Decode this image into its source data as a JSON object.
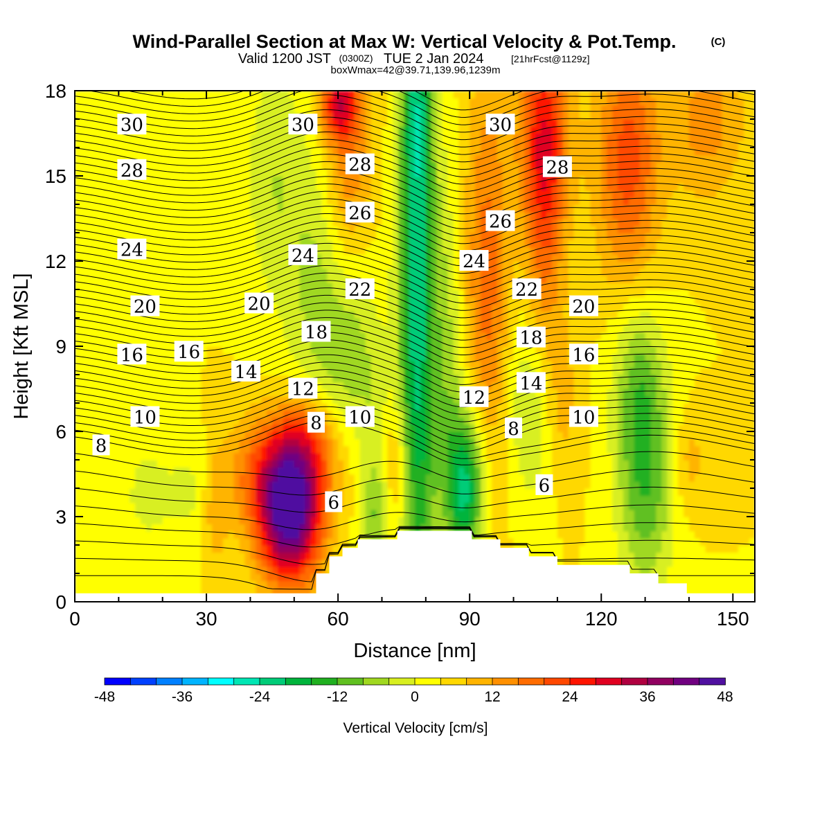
{
  "title": {
    "main": "Wind-Parallel Section at Max W: Vertical Velocity & Pot.Temp.",
    "main_suffix": "(C)",
    "line2_a": "Valid 1200 JST",
    "line2_b": "(0300Z)",
    "line2_c": "TUE 2 Jan 2024",
    "line2_d": "[21hrFcst@1129z]",
    "line3": "boxWmax=42@39.71,139.96,1239m"
  },
  "chart_data": {
    "type": "heatmap",
    "xlabel": "Distance [nm]",
    "ylabel": "Height [Kft MSL]",
    "xlim": [
      0,
      155
    ],
    "ylim": [
      0,
      18
    ],
    "x_ticks": [
      0,
      30,
      60,
      90,
      120,
      150
    ],
    "y_ticks": [
      0,
      3,
      6,
      9,
      12,
      15,
      18
    ],
    "colorbar": {
      "label": "Vertical Velocity [cm/s]",
      "tick_labels": [
        "-48",
        "-36",
        "-24",
        "-12",
        "0",
        "12",
        "24",
        "36",
        "48"
      ],
      "tick_values": [
        -48,
        -36,
        -24,
        -12,
        0,
        12,
        24,
        36,
        48
      ],
      "colors": [
        "#0000ff",
        "#0040ff",
        "#0080ff",
        "#00b4ff",
        "#00ffff",
        "#00e6b4",
        "#00cc78",
        "#00b43c",
        "#20b020",
        "#60c020",
        "#a0d820",
        "#d8ef20",
        "#ffff00",
        "#ffd800",
        "#ffb400",
        "#ff9000",
        "#ff6c00",
        "#ff4800",
        "#ff1400",
        "#e00020",
        "#b00040",
        "#900060",
        "#700080",
        "#5010a0"
      ]
    },
    "terrain_profile": {
      "x": [
        0,
        55,
        55,
        58,
        58,
        61,
        61,
        64.5,
        64.5,
        73.5,
        73.5,
        77,
        77,
        90.5,
        90.5,
        97,
        97,
        103.5,
        103.5,
        110,
        110,
        126.5,
        126.5,
        133,
        133,
        139.5,
        139.5,
        155
      ],
      "y": [
        0.3,
        0.3,
        1.0,
        1.0,
        1.6,
        1.6,
        1.9,
        1.9,
        2.2,
        2.2,
        2.5,
        2.5,
        2.5,
        2.5,
        2.2,
        2.2,
        1.9,
        1.9,
        1.6,
        1.6,
        1.3,
        1.3,
        1.0,
        1.0,
        0.65,
        0.65,
        0.3,
        0.3
      ]
    },
    "vertical_velocity_features": [
      {
        "x": 49,
        "y": 2.9,
        "sx": 5,
        "sy": 1.6,
        "value": 40
      },
      {
        "x": 47,
        "y": 4.6,
        "sx": 8,
        "sy": 1.4,
        "value": 18
      },
      {
        "x": 53,
        "y": 5.8,
        "sx": 5,
        "sy": 1.2,
        "value": 12
      },
      {
        "x": 78,
        "y": 11,
        "sx": 3,
        "sy": 9,
        "value": -27
      },
      {
        "x": 78,
        "y": 17,
        "sx": 2,
        "sy": 1.5,
        "value": -8
      },
      {
        "x": 89,
        "y": 3.5,
        "sx": 3,
        "sy": 1.4,
        "value": -20
      },
      {
        "x": 89,
        "y": 5.5,
        "sx": 3.5,
        "sy": 1.6,
        "value": -12
      },
      {
        "x": 85,
        "y": 9,
        "sx": 2.5,
        "sy": 4,
        "value": -8
      },
      {
        "x": 57,
        "y": 11,
        "sx": 6,
        "sy": 4,
        "value": -11
      },
      {
        "x": 45,
        "y": 15,
        "sx": 4.5,
        "sy": 3,
        "value": -7
      },
      {
        "x": 64,
        "y": 9,
        "sx": 4,
        "sy": 2.5,
        "value": -7
      },
      {
        "x": 69,
        "y": 3,
        "sx": 2.5,
        "sy": 1.3,
        "value": -12
      },
      {
        "x": 69,
        "y": 6,
        "sx": 2.5,
        "sy": 2,
        "value": -5
      },
      {
        "x": 104,
        "y": 7,
        "sx": 4,
        "sy": 2.5,
        "value": -9
      },
      {
        "x": 130,
        "y": 4.5,
        "sx": 4.5,
        "sy": 3,
        "value": -16
      },
      {
        "x": 128,
        "y": 8,
        "sx": 4,
        "sy": 2,
        "value": -8
      },
      {
        "x": 17,
        "y": 3.8,
        "sx": 6,
        "sy": 1.8,
        "value": -5
      },
      {
        "x": 27,
        "y": 4,
        "sx": 3,
        "sy": 1.4,
        "value": -4
      },
      {
        "x": 62,
        "y": 15.5,
        "sx": 4,
        "sy": 3.5,
        "value": 15
      },
      {
        "x": 60,
        "y": 17.5,
        "sx": 3,
        "sy": 0.8,
        "value": 20
      },
      {
        "x": 94,
        "y": 11.5,
        "sx": 3.5,
        "sy": 5,
        "value": 14
      },
      {
        "x": 107,
        "y": 16.5,
        "sx": 4,
        "sy": 2.5,
        "value": 22
      },
      {
        "x": 107,
        "y": 12,
        "sx": 3,
        "sy": 3,
        "value": 11
      },
      {
        "x": 126,
        "y": 15.5,
        "sx": 5,
        "sy": 3,
        "value": 18
      },
      {
        "x": 144,
        "y": 17,
        "sx": 6,
        "sy": 2,
        "value": 10
      },
      {
        "x": 73,
        "y": 4.5,
        "sx": 2.5,
        "sy": 1.8,
        "value": 10
      },
      {
        "x": 32,
        "y": 3,
        "sx": 2,
        "sy": 1.5,
        "value": 6
      },
      {
        "x": 111,
        "y": 7,
        "sx": 3,
        "sy": 2,
        "value": 6
      },
      {
        "x": 140,
        "y": 5,
        "sx": 3,
        "sy": 1.2,
        "value": 6
      }
    ],
    "theta_labels": [
      {
        "text": "30",
        "x": 13,
        "y": 16.8
      },
      {
        "text": "30",
        "x": 52,
        "y": 16.8
      },
      {
        "text": "30",
        "x": 97,
        "y": 16.8
      },
      {
        "text": "28",
        "x": 13,
        "y": 15.2
      },
      {
        "text": "28",
        "x": 65,
        "y": 15.4
      },
      {
        "text": "28",
        "x": 110,
        "y": 15.3
      },
      {
        "text": "26",
        "x": 65,
        "y": 13.7
      },
      {
        "text": "26",
        "x": 97,
        "y": 13.4
      },
      {
        "text": "24",
        "x": 13,
        "y": 12.4
      },
      {
        "text": "24",
        "x": 52,
        "y": 12.2
      },
      {
        "text": "24",
        "x": 91,
        "y": 12.0
      },
      {
        "text": "22",
        "x": 65,
        "y": 11.0
      },
      {
        "text": "22",
        "x": 103,
        "y": 11.0
      },
      {
        "text": "20",
        "x": 16,
        "y": 10.4
      },
      {
        "text": "20",
        "x": 42,
        "y": 10.5
      },
      {
        "text": "20",
        "x": 116,
        "y": 10.4
      },
      {
        "text": "18",
        "x": 55,
        "y": 9.5
      },
      {
        "text": "18",
        "x": 104,
        "y": 9.3
      },
      {
        "text": "16",
        "x": 13,
        "y": 8.7
      },
      {
        "text": "16",
        "x": 26,
        "y": 8.8
      },
      {
        "text": "16",
        "x": 116,
        "y": 8.7
      },
      {
        "text": "14",
        "x": 39,
        "y": 8.1
      },
      {
        "text": "14",
        "x": 104,
        "y": 7.7
      },
      {
        "text": "12",
        "x": 52,
        "y": 7.5
      },
      {
        "text": "12",
        "x": 91,
        "y": 7.2
      },
      {
        "text": "10",
        "x": 16,
        "y": 6.5
      },
      {
        "text": "10",
        "x": 65,
        "y": 6.5
      },
      {
        "text": "10",
        "x": 116,
        "y": 6.5
      },
      {
        "text": "8",
        "x": 6,
        "y": 5.5
      },
      {
        "text": "8",
        "x": 55,
        "y": 6.3
      },
      {
        "text": "8",
        "x": 100,
        "y": 6.1
      },
      {
        "text": "6",
        "x": 59,
        "y": 3.5
      },
      {
        "text": "6",
        "x": 107,
        "y": 4.1
      }
    ]
  }
}
